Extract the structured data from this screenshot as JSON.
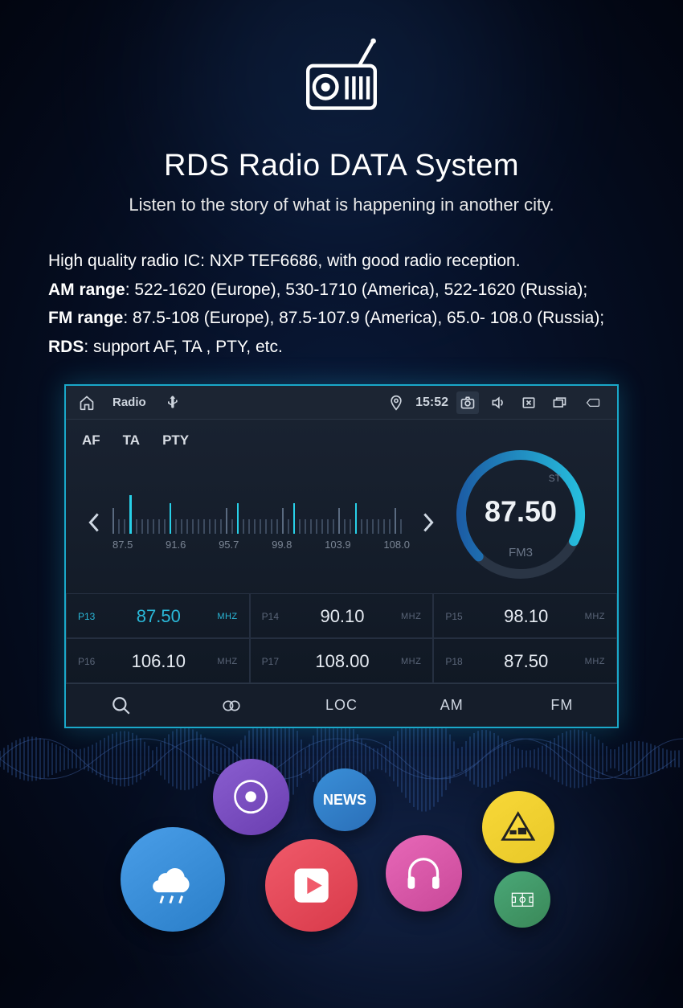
{
  "colors": {
    "accent": "#1aa8c9",
    "cyan": "#28d0e8",
    "bg_dark": "#050d20",
    "panel": "#1a2332",
    "text_dim": "#7a8594"
  },
  "header": {
    "title": "RDS Radio DATA System",
    "subtitle": "Listen to the story of what is happening in another city."
  },
  "specs": {
    "line1_pre": "High quality radio IC: NXP TEF6686, with good radio reception.",
    "am_label": "AM range",
    "am_val": ": 522-1620 (Europe), 530-1710 (America), 522-1620 (Russia);",
    "fm_label": "FM range",
    "fm_val": ": 87.5-108 (Europe), 87.5-107.9 (America), 65.0- 108.0 (Russia);",
    "rds_label": "RDS",
    "rds_val": ": support AF, TA , PTY, etc."
  },
  "device": {
    "statusbar": {
      "app_title": "Radio",
      "time": "15:52",
      "icons": [
        "home",
        "usb",
        "location",
        "camera",
        "speaker",
        "close-app",
        "multitask",
        "back"
      ]
    },
    "rds_tabs": [
      "AF",
      "TA",
      "PTY"
    ],
    "tuner": {
      "scale_labels": [
        "87.5",
        "91.6",
        "95.7",
        "99.8",
        "103.9",
        "108.0"
      ],
      "ticks_total": 52,
      "indicator_index": 3,
      "active_indices": [
        10,
        22,
        32,
        43
      ]
    },
    "dial": {
      "st_label": "ST",
      "frequency": "87.50",
      "band": "FM3",
      "ring_colors": {
        "start": "#28d0e8",
        "end": "#1a4a9a",
        "track": "#2a3545"
      },
      "stroke_width": 12
    },
    "presets": [
      {
        "label": "P13",
        "freq": "87.50",
        "unit": "MHZ",
        "active": true
      },
      {
        "label": "P14",
        "freq": "90.10",
        "unit": "MHZ",
        "active": false
      },
      {
        "label": "P15",
        "freq": "98.10",
        "unit": "MHZ",
        "active": false
      },
      {
        "label": "P16",
        "freq": "106.10",
        "unit": "MHZ",
        "active": false
      },
      {
        "label": "P17",
        "freq": "108.00",
        "unit": "MHZ",
        "active": false
      },
      {
        "label": "P18",
        "freq": "87.50",
        "unit": "MHZ",
        "active": false
      }
    ],
    "bottombar": {
      "items": [
        {
          "key": "search",
          "type": "icon"
        },
        {
          "key": "stereo",
          "type": "icon"
        },
        {
          "key": "loc",
          "type": "text",
          "label": "LOC"
        },
        {
          "key": "am",
          "type": "text",
          "label": "AM"
        },
        {
          "key": "fm",
          "type": "text",
          "label": "FM"
        }
      ]
    }
  },
  "bubbles": {
    "music": {
      "name": "music-icon",
      "color": "#8a5ed0"
    },
    "news": {
      "name": "news-icon",
      "label": "NEWS",
      "color": "#3a8fd8"
    },
    "weather": {
      "name": "weather-icon",
      "color": "#4a9ee8"
    },
    "play": {
      "name": "play-icon",
      "color": "#f05a6a"
    },
    "headphones": {
      "name": "headphones-icon",
      "color": "#e868b8"
    },
    "warning": {
      "name": "warning-icon",
      "color": "#f8d838"
    },
    "sports": {
      "name": "sports-icon",
      "color": "#4aa878"
    }
  }
}
